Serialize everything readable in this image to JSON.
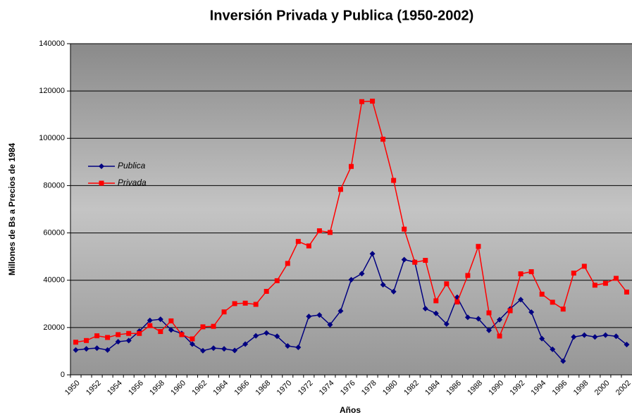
{
  "chart_data": {
    "type": "line",
    "title": "Inversión Privada y Publica (1950-2002)",
    "x_label": "Años",
    "y_label": "Millones de Bs a Precios de 1984",
    "categories": [
      "1950",
      null,
      "1952",
      null,
      "1954",
      null,
      "1956",
      null,
      "1958",
      null,
      "1960",
      null,
      "1962",
      null,
      "1964",
      null,
      "1966",
      null,
      "1968",
      null,
      "1970",
      null,
      "1972",
      null,
      "1974",
      null,
      "1976",
      null,
      "1978",
      null,
      "1980",
      null,
      "1982",
      null,
      "1984",
      null,
      "1986",
      null,
      "1988",
      null,
      "1990",
      null,
      "1992",
      null,
      "1994",
      null,
      "1996",
      null,
      "1998",
      null,
      "2000",
      null,
      "2002"
    ],
    "series": [
      {
        "name": "Publica",
        "color": "#000080",
        "marker": "diamond",
        "values": [
          10500,
          11000,
          11300,
          10500,
          14000,
          14500,
          18500,
          23000,
          23500,
          19000,
          17500,
          13000,
          10200,
          11300,
          11000,
          10300,
          13000,
          16500,
          17700,
          16300,
          12200,
          11600,
          24700,
          25300,
          21200,
          27000,
          40200,
          42800,
          51200,
          38100,
          35200,
          48700,
          47700,
          28000,
          26000,
          21500,
          32800,
          24300,
          23700,
          18800,
          23300,
          27900,
          31800,
          26500,
          15300,
          10800,
          5800,
          16000,
          16800,
          16000,
          16800,
          16300,
          12800
        ]
      },
      {
        "name": "Privada",
        "color": "#ff0000",
        "marker": "square",
        "values": [
          13800,
          14500,
          16500,
          15800,
          17000,
          17500,
          17500,
          20800,
          18300,
          22800,
          17000,
          15200,
          20300,
          20500,
          26600,
          30100,
          30300,
          29800,
          35300,
          39800,
          47100,
          56400,
          54500,
          60900,
          60200,
          78400,
          88100,
          115500,
          115700,
          99600,
          82200,
          61600,
          47600,
          48400,
          31300,
          38500,
          30800,
          42000,
          54300,
          26200,
          16400,
          27100,
          42700,
          43600,
          34100,
          30700,
          27800,
          43000,
          45900,
          37900,
          38700,
          40800,
          35000
        ]
      }
    ],
    "ylim": [
      0,
      140000
    ],
    "yticks": [
      0,
      20000,
      40000,
      60000,
      80000,
      100000,
      120000,
      140000
    ],
    "grid": true,
    "legend": "left"
  }
}
